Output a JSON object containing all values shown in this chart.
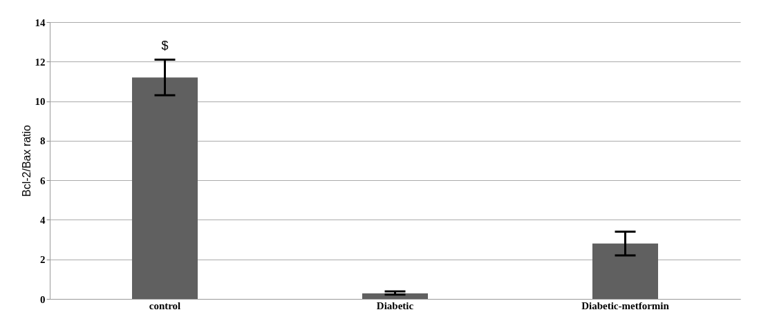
{
  "chart_data": {
    "type": "bar",
    "ylabel": "Bcl-2/Bax ratio",
    "categories": [
      "control",
      "Diabetic",
      "Diabetic-metformin"
    ],
    "values": [
      11.2,
      0.28,
      2.8
    ],
    "errors": [
      [
        10.3,
        12.1
      ],
      [
        0.22,
        0.38
      ],
      [
        2.2,
        3.4
      ]
    ],
    "color": "#606060",
    "ylim": [
      0,
      14
    ],
    "yticks": [
      0,
      2,
      4,
      6,
      8,
      10,
      12,
      14
    ],
    "grid": "y",
    "annotations": [
      "$"
    ]
  }
}
